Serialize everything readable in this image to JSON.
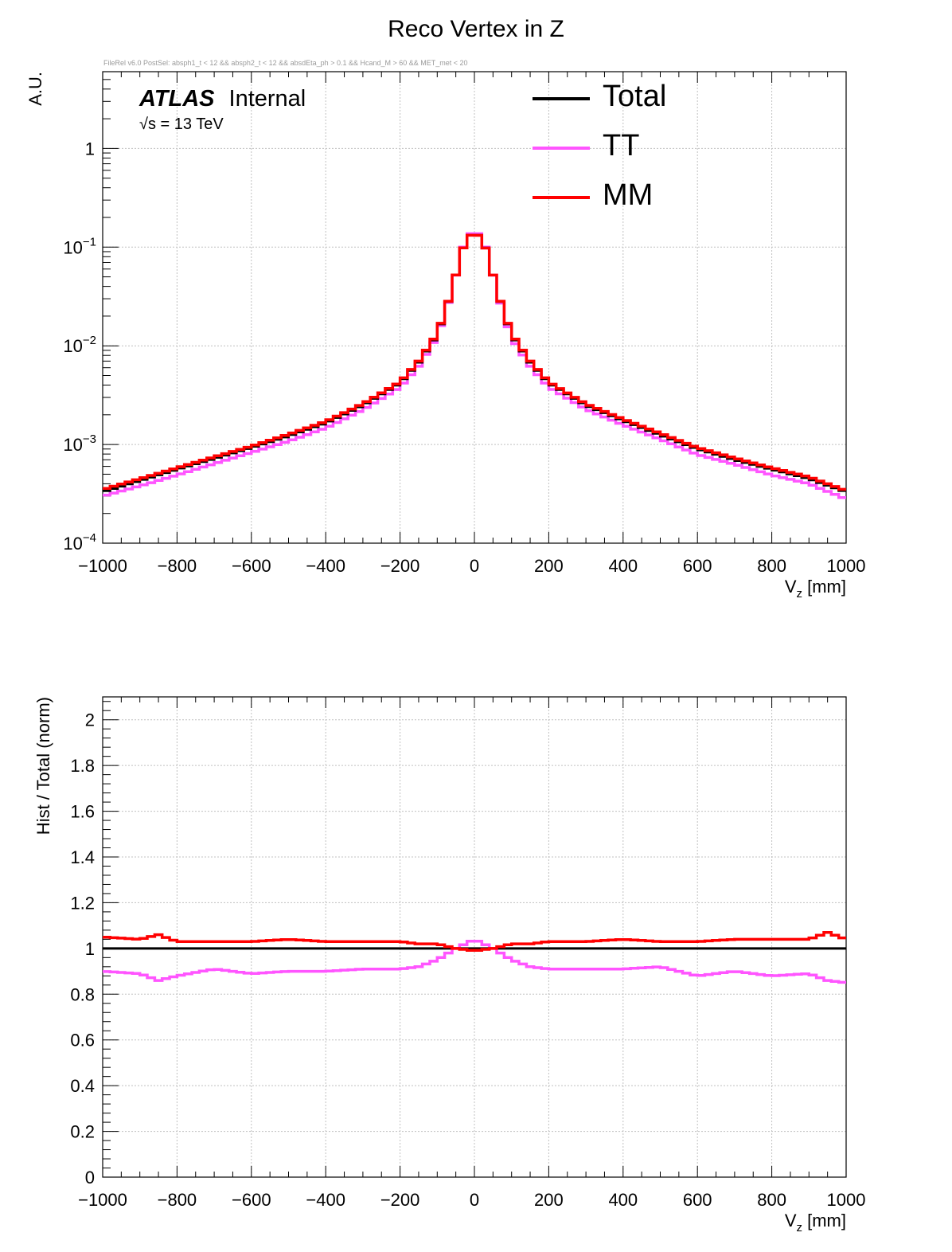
{
  "colors": {
    "Total": "#000000",
    "TT": "#ff55ff",
    "MM": "#ff0000",
    "grid": "#c0c0c0"
  },
  "header": {
    "title": "Reco Vertex in Z",
    "selection_text": "FileRel v6.0 PostSel:  absph1_t < 12 && absph2_t < 12 && absdEta_ph > 0.1 && Hcand_M > 60 && MET_met < 20",
    "atlas_label": "ATLAS",
    "atlas_status": "Internal",
    "energy_label": "√s = 13 TeV"
  },
  "legend": {
    "items": [
      "Total",
      "TT",
      "MM"
    ]
  },
  "chart_data": [
    {
      "type": "line",
      "style": "step histogram",
      "ylabel": "A.U.",
      "xlabel": "V_z [mm]",
      "xlim": [
        -1000,
        1000
      ],
      "ylim": [
        0.0001,
        6
      ],
      "yscale": "log",
      "grid": true,
      "legend_position": "top-right",
      "x_ticks": [
        "−1000",
        "−800",
        "−600",
        "−400",
        "−200",
        "0",
        "200",
        "400",
        "600",
        "800",
        "1000"
      ],
      "y_ticks": [
        "10−4",
        "10−3",
        "10−2",
        "10−1",
        "1"
      ],
      "x": [
        -1000,
        -900,
        -800,
        -700,
        -600,
        -500,
        -400,
        -300,
        -200,
        -150,
        -100,
        -75,
        -50,
        -25,
        0,
        25,
        50,
        75,
        100,
        150,
        200,
        300,
        400,
        500,
        600,
        700,
        800,
        900,
        1000
      ],
      "series": [
        {
          "name": "Total",
          "values": [
            0.00033,
            0.00043,
            0.00056,
            0.00072,
            0.00093,
            0.00122,
            0.00165,
            0.0025,
            0.0042,
            0.0068,
            0.013,
            0.024,
            0.052,
            0.115,
            0.145,
            0.115,
            0.052,
            0.024,
            0.013,
            0.0068,
            0.0042,
            0.0025,
            0.00175,
            0.00125,
            0.0009,
            0.0007,
            0.00056,
            0.00045,
            0.00033
          ]
        },
        {
          "name": "TT",
          "values": [
            0.0003,
            0.00038,
            0.00049,
            0.00064,
            0.00083,
            0.00108,
            0.00147,
            0.00225,
            0.0038,
            0.0062,
            0.0124,
            0.0235,
            0.052,
            0.118,
            0.151,
            0.118,
            0.052,
            0.023,
            0.012,
            0.0062,
            0.0038,
            0.00228,
            0.00158,
            0.00113,
            0.00079,
            0.00063,
            0.00049,
            0.0004,
            0.00028
          ]
        },
        {
          "name": "MM",
          "values": [
            0.00035,
            0.00045,
            0.00058,
            0.00075,
            0.00096,
            0.00127,
            0.00171,
            0.00259,
            0.0043,
            0.007,
            0.0133,
            0.0243,
            0.0522,
            0.115,
            0.1445,
            0.1145,
            0.0521,
            0.0243,
            0.0133,
            0.007,
            0.0043,
            0.00258,
            0.00181,
            0.0013,
            0.00093,
            0.00073,
            0.00058,
            0.00047,
            0.00034
          ]
        }
      ]
    },
    {
      "type": "line",
      "style": "step histogram",
      "ylabel": "Hist / Total (norm)",
      "xlabel": "V_z [mm]",
      "xlim": [
        -1000,
        1000
      ],
      "ylim": [
        0,
        2.1
      ],
      "grid": true,
      "x_ticks": [
        "−1000",
        "−800",
        "−600",
        "−400",
        "−200",
        "0",
        "200",
        "400",
        "600",
        "800",
        "1000"
      ],
      "y_ticks": [
        "0",
        "0.2",
        "0.4",
        "0.6",
        "0.8",
        "1",
        "1.2",
        "1.4",
        "1.6",
        "1.8",
        "2"
      ],
      "x": [
        -1000,
        -900,
        -850,
        -800,
        -700,
        -600,
        -500,
        -400,
        -300,
        -200,
        -150,
        -100,
        -50,
        0,
        50,
        100,
        150,
        200,
        300,
        400,
        500,
        600,
        700,
        800,
        900,
        950,
        1000
      ],
      "series": [
        {
          "name": "Total",
          "values": [
            1,
            1,
            1,
            1,
            1,
            1,
            1,
            1,
            1,
            1,
            1,
            1,
            1,
            1,
            1,
            1,
            1,
            1,
            1,
            1,
            1,
            1,
            1,
            1,
            1,
            1,
            1
          ]
        },
        {
          "name": "TT",
          "values": [
            0.9,
            0.89,
            0.86,
            0.88,
            0.91,
            0.89,
            0.9,
            0.9,
            0.91,
            0.91,
            0.92,
            0.95,
            1.0,
            1.04,
            1.0,
            0.95,
            0.92,
            0.91,
            0.91,
            0.91,
            0.92,
            0.88,
            0.9,
            0.88,
            0.89,
            0.86,
            0.85
          ]
        },
        {
          "name": "MM",
          "values": [
            1.05,
            1.04,
            1.06,
            1.03,
            1.03,
            1.03,
            1.04,
            1.03,
            1.03,
            1.03,
            1.02,
            1.02,
            1.0,
            0.99,
            1.0,
            1.02,
            1.02,
            1.03,
            1.03,
            1.04,
            1.03,
            1.03,
            1.04,
            1.04,
            1.04,
            1.07,
            1.04
          ]
        }
      ]
    }
  ]
}
